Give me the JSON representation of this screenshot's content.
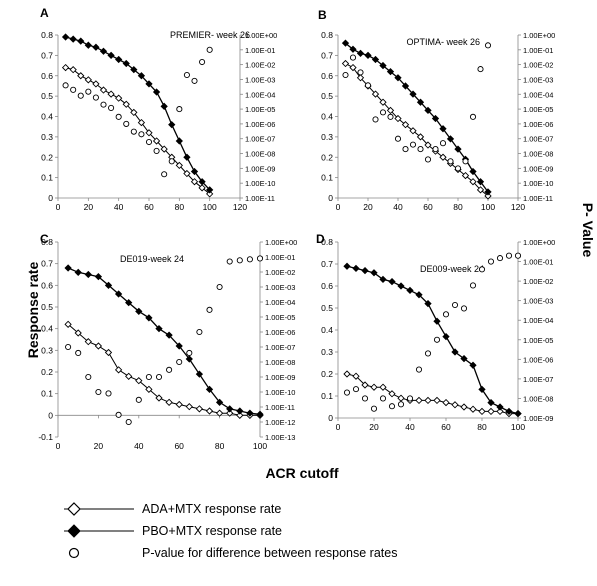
{
  "y_axis_label": "Response rate",
  "y2_axis_label": "P- Value",
  "x_axis_label": "ACR cutoff",
  "legend": [
    {
      "label": "ADA+MTX response rate",
      "marker": "open-diamond"
    },
    {
      "label": "PBO+MTX response rate",
      "marker": "filled-diamond"
    },
    {
      "label": "P-value for difference between response rates",
      "marker": "open-circle"
    }
  ],
  "colors": {
    "line": "#000000",
    "background": "#ffffff"
  },
  "chart_data": [
    {
      "type": "line",
      "panel": "A",
      "title": "PREMIER- week 26",
      "xlim": [
        0,
        120
      ],
      "xticks": [
        0,
        20,
        40,
        60,
        80,
        100,
        120
      ],
      "ylim": [
        0,
        0.8
      ],
      "yticks": [
        0,
        0.1,
        0.2,
        0.3,
        0.4,
        0.5,
        0.6,
        0.7,
        0.8
      ],
      "y2_scale": "log",
      "y2_exp_range": [
        -11,
        0
      ],
      "y2_ticks": [
        "1.00E-11",
        "1.00E-10",
        "1.00E-09",
        "1.00E-08",
        "1.00E-07",
        "1.00E-06",
        "1.00E-05",
        "1.00E-04",
        "1.00E-03",
        "1.00E-02",
        "1.00E-01",
        "1.00E+00"
      ],
      "series": [
        {
          "name": "ADA+MTX response rate",
          "marker": "open-diamond",
          "x": [
            5,
            10,
            15,
            20,
            25,
            30,
            35,
            40,
            45,
            50,
            55,
            60,
            65,
            70,
            75,
            80,
            85,
            90,
            95,
            100
          ],
          "y": [
            0.64,
            0.63,
            0.6,
            0.58,
            0.56,
            0.53,
            0.51,
            0.49,
            0.46,
            0.42,
            0.37,
            0.32,
            0.28,
            0.24,
            0.2,
            0.16,
            0.12,
            0.08,
            0.05,
            0.02
          ]
        },
        {
          "name": "PBO+MTX response rate",
          "marker": "filled-diamond",
          "x": [
            5,
            10,
            15,
            20,
            25,
            30,
            35,
            40,
            45,
            50,
            55,
            60,
            65,
            70,
            75,
            80,
            85,
            90,
            95,
            100
          ],
          "y": [
            0.79,
            0.78,
            0.77,
            0.75,
            0.74,
            0.72,
            0.7,
            0.68,
            0.66,
            0.63,
            0.6,
            0.56,
            0.52,
            0.45,
            0.36,
            0.28,
            0.2,
            0.13,
            0.08,
            0.04
          ]
        },
        {
          "name": "P-value for difference between response rates",
          "marker": "open-circle",
          "axis": "log",
          "x": [
            5,
            10,
            15,
            20,
            25,
            30,
            35,
            40,
            45,
            50,
            55,
            60,
            65,
            70,
            75,
            80,
            85,
            90,
            95,
            100
          ],
          "y": [
            0.0004,
            0.0002,
            8e-05,
            0.00015,
            6e-05,
            2e-05,
            1.2e-05,
            3e-06,
            1e-06,
            3e-07,
            2e-07,
            6e-08,
            1.5e-08,
            4e-10,
            3e-09,
            1e-05,
            0.002,
            0.0008,
            0.015,
            0.1
          ]
        }
      ]
    },
    {
      "type": "line",
      "panel": "B",
      "title": "OPTIMA- week 26",
      "xlim": [
        0,
        120
      ],
      "xticks": [
        0,
        20,
        40,
        60,
        80,
        100,
        120
      ],
      "ylim": [
        0,
        0.8
      ],
      "yticks": [
        0,
        0.1,
        0.2,
        0.3,
        0.4,
        0.5,
        0.6,
        0.7,
        0.8
      ],
      "y2_scale": "log",
      "y2_exp_range": [
        -11,
        0
      ],
      "y2_ticks": [
        "1.00E-11",
        "1.00E-10",
        "1.00E-09",
        "1.00E-08",
        "1.00E-07",
        "1.00E-06",
        "1.00E-05",
        "1.00E-04",
        "1.00E-03",
        "1.00E-02",
        "1.00E-01",
        "1.00E+00"
      ],
      "series": [
        {
          "name": "ADA+MTX response rate",
          "marker": "open-diamond",
          "x": [
            5,
            10,
            15,
            20,
            25,
            30,
            35,
            40,
            45,
            50,
            55,
            60,
            65,
            70,
            75,
            80,
            85,
            90,
            95,
            100
          ],
          "y": [
            0.66,
            0.64,
            0.59,
            0.55,
            0.51,
            0.47,
            0.43,
            0.39,
            0.36,
            0.33,
            0.3,
            0.26,
            0.23,
            0.2,
            0.17,
            0.14,
            0.11,
            0.08,
            0.04,
            0.01
          ]
        },
        {
          "name": "PBO+MTX response rate",
          "marker": "filled-diamond",
          "x": [
            5,
            10,
            15,
            20,
            25,
            30,
            35,
            40,
            45,
            50,
            55,
            60,
            65,
            70,
            75,
            80,
            85,
            90,
            95,
            100
          ],
          "y": [
            0.76,
            0.73,
            0.71,
            0.7,
            0.68,
            0.65,
            0.62,
            0.59,
            0.55,
            0.51,
            0.47,
            0.43,
            0.39,
            0.34,
            0.29,
            0.24,
            0.19,
            0.13,
            0.08,
            0.03
          ]
        },
        {
          "name": "P-value for difference between response rates",
          "marker": "open-circle",
          "axis": "log",
          "x": [
            5,
            10,
            15,
            20,
            25,
            30,
            35,
            40,
            45,
            50,
            55,
            60,
            65,
            70,
            75,
            80,
            85,
            90,
            95,
            100
          ],
          "y": [
            0.002,
            0.03,
            0.003,
            0.0004,
            2e-06,
            6e-06,
            3e-06,
            1e-07,
            2e-08,
            4e-08,
            2e-08,
            4e-09,
            2e-08,
            5e-08,
            3e-09,
            1e-09,
            3e-09,
            3e-06,
            0.005,
            0.2
          ]
        }
      ]
    },
    {
      "type": "line",
      "panel": "C",
      "title": "DE019-week 24",
      "xlim": [
        0,
        100
      ],
      "xticks": [
        0,
        20,
        40,
        60,
        80,
        100
      ],
      "ylim": [
        -0.1,
        0.8
      ],
      "yticks": [
        -0.1,
        0,
        0.1,
        0.2,
        0.3,
        0.4,
        0.5,
        0.6,
        0.7,
        0.8
      ],
      "y2_scale": "log",
      "y2_exp_range": [
        -13,
        0
      ],
      "y2_ticks": [
        "1.00E-13",
        "1.00E-12",
        "1.00E-11",
        "1.00E-10",
        "1.00E-09",
        "1.00E-08",
        "1.00E-07",
        "1.00E-06",
        "1.00E-05",
        "1.00E-04",
        "1.00E-03",
        "1.00E-02",
        "1.00E-01",
        "1.00E+00"
      ],
      "series": [
        {
          "name": "ADA+MTX response rate",
          "marker": "open-diamond",
          "x": [
            5,
            10,
            15,
            20,
            25,
            30,
            35,
            40,
            45,
            50,
            55,
            60,
            65,
            70,
            75,
            80,
            85,
            90,
            95,
            100
          ],
          "y": [
            0.42,
            0.38,
            0.34,
            0.32,
            0.29,
            0.21,
            0.18,
            0.16,
            0.12,
            0.08,
            0.06,
            0.05,
            0.04,
            0.03,
            0.02,
            0.01,
            0.01,
            0.0,
            0.0,
            0.0
          ]
        },
        {
          "name": "PBO+MTX response rate",
          "marker": "filled-diamond",
          "x": [
            5,
            10,
            15,
            20,
            25,
            30,
            35,
            40,
            45,
            50,
            55,
            60,
            65,
            70,
            75,
            80,
            85,
            90,
            95,
            100
          ],
          "y": [
            0.68,
            0.66,
            0.65,
            0.64,
            0.6,
            0.56,
            0.52,
            0.48,
            0.45,
            0.4,
            0.37,
            0.32,
            0.26,
            0.19,
            0.12,
            0.06,
            0.03,
            0.02,
            0.01,
            0.005
          ]
        },
        {
          "name": "P-value for difference between response rates",
          "marker": "open-circle",
          "axis": "log",
          "x": [
            5,
            10,
            15,
            20,
            25,
            30,
            35,
            40,
            45,
            50,
            55,
            60,
            65,
            70,
            75,
            80,
            85,
            90,
            95,
            100
          ],
          "y": [
            1e-07,
            4e-08,
            1e-09,
            1e-10,
            8e-11,
            3e-12,
            1e-12,
            3e-11,
            1e-09,
            1e-09,
            3e-09,
            1e-08,
            4e-08,
            1e-06,
            3e-05,
            0.001,
            0.05,
            0.06,
            0.07,
            0.08
          ]
        }
      ]
    },
    {
      "type": "line",
      "panel": "D",
      "title": "DE009-week 24",
      "xlim": [
        0,
        100
      ],
      "xticks": [
        0,
        20,
        40,
        60,
        80,
        100
      ],
      "ylim": [
        0,
        0.8
      ],
      "yticks": [
        0,
        0.1,
        0.2,
        0.3,
        0.4,
        0.5,
        0.6,
        0.7,
        0.8
      ],
      "y2_scale": "log",
      "y2_exp_range": [
        -9,
        0
      ],
      "y2_ticks": [
        "1.00E-09",
        "1.00E-08",
        "1.00E-07",
        "1.00E-06",
        "1.00E-05",
        "1.00E-04",
        "1.00E-03",
        "1.00E-02",
        "1.00E-01",
        "1.00E+00"
      ],
      "series": [
        {
          "name": "ADA+MTX response rate",
          "marker": "open-diamond",
          "x": [
            5,
            10,
            15,
            20,
            25,
            30,
            35,
            40,
            45,
            50,
            55,
            60,
            65,
            70,
            75,
            80,
            85,
            90,
            95,
            100
          ],
          "y": [
            0.2,
            0.19,
            0.15,
            0.14,
            0.14,
            0.11,
            0.09,
            0.08,
            0.08,
            0.08,
            0.08,
            0.07,
            0.06,
            0.05,
            0.04,
            0.03,
            0.03,
            0.03,
            0.02,
            0.02
          ]
        },
        {
          "name": "PBO+MTX response rate",
          "marker": "filled-diamond",
          "x": [
            5,
            10,
            15,
            20,
            25,
            30,
            35,
            40,
            45,
            50,
            55,
            60,
            65,
            70,
            75,
            80,
            85,
            90,
            95,
            100
          ],
          "y": [
            0.69,
            0.68,
            0.67,
            0.66,
            0.63,
            0.62,
            0.6,
            0.58,
            0.56,
            0.52,
            0.44,
            0.37,
            0.3,
            0.27,
            0.24,
            0.13,
            0.07,
            0.05,
            0.03,
            0.02
          ]
        },
        {
          "name": "P-value for difference between response rates",
          "marker": "open-circle",
          "axis": "log",
          "x": [
            5,
            10,
            15,
            20,
            25,
            30,
            35,
            40,
            45,
            50,
            55,
            60,
            65,
            70,
            75,
            80,
            85,
            90,
            95,
            100
          ],
          "y": [
            2e-08,
            3e-08,
            1e-08,
            3e-09,
            1e-08,
            4e-09,
            5e-09,
            1e-08,
            3e-07,
            2e-06,
            1e-05,
            0.0002,
            0.0006,
            0.0004,
            0.006,
            0.04,
            0.1,
            0.15,
            0.2,
            0.2
          ]
        }
      ]
    }
  ]
}
